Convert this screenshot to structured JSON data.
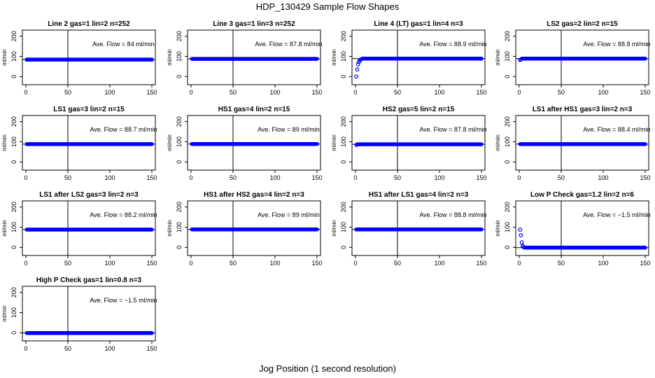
{
  "figure": {
    "title": "HDP_130429  Sample Flow Shapes",
    "xlabel": "Jog Position (1 second resolution)",
    "ylabel": "ml/min"
  },
  "colors": {
    "points": "#0000ff",
    "axis": "#000000"
  },
  "chart_data": [
    {
      "type": "scatter",
      "title": "Line 2 gas=1 lin=2 n=252",
      "annotation": "Ave. Flow = 84  ml/min",
      "xlim": [
        0,
        150
      ],
      "ylim": [
        -30,
        220
      ],
      "xticks": [
        0,
        50,
        100,
        150
      ],
      "yticks": [
        0,
        100,
        200
      ],
      "vline": 50,
      "hline": 84,
      "points": [
        {
          "x": 1,
          "y": 84
        },
        {
          "x": 150,
          "y": 84
        }
      ],
      "flat": {
        "x_start": 2,
        "x_end": 150,
        "y": 84
      }
    },
    {
      "type": "scatter",
      "title": "Line 3 gas=1 lin=3 n=252",
      "annotation": "Ave. Flow = 87.8  ml/min",
      "xlim": [
        0,
        150
      ],
      "ylim": [
        -30,
        220
      ],
      "xticks": [
        0,
        50,
        100,
        150
      ],
      "yticks": [
        0,
        100,
        200
      ],
      "vline": 50,
      "hline": 87.8,
      "points": [],
      "flat": {
        "x_start": 1,
        "x_end": 150,
        "y": 87.8
      }
    },
    {
      "type": "scatter",
      "title": "Line 4 (LT) gas=1 lin=4 n=3",
      "annotation": "Ave. Flow = 88.9  ml/min",
      "xlim": [
        0,
        150
      ],
      "ylim": [
        -30,
        220
      ],
      "xticks": [
        0,
        50,
        100,
        150
      ],
      "yticks": [
        0,
        100,
        200
      ],
      "vline": 50,
      "hline": 88.9,
      "points": [
        {
          "x": 1,
          "y": 0
        },
        {
          "x": 2,
          "y": 35
        },
        {
          "x": 3,
          "y": 60
        },
        {
          "x": 4,
          "y": 72
        },
        {
          "x": 5,
          "y": 80
        },
        {
          "x": 6,
          "y": 84
        },
        {
          "x": 7,
          "y": 86
        }
      ],
      "flat": {
        "x_start": 8,
        "x_end": 150,
        "y": 88.9
      }
    },
    {
      "type": "scatter",
      "title": "LS2 gas=2 lin=2 n=15",
      "annotation": "Ave. Flow = 88.8  ml/min",
      "xlim": [
        0,
        150
      ],
      "ylim": [
        -30,
        220
      ],
      "xticks": [
        0,
        50,
        100,
        150
      ],
      "yticks": [
        0,
        100,
        200
      ],
      "vline": 50,
      "hline": 88.8,
      "points": [
        {
          "x": 1,
          "y": 82
        },
        {
          "x": 2,
          "y": 85
        }
      ],
      "flat": {
        "x_start": 3,
        "x_end": 150,
        "y": 88.8
      }
    },
    {
      "type": "scatter",
      "title": "LS1 gas=3 lin=2 n=15",
      "annotation": "Ave. Flow = 88.7  ml/min",
      "xlim": [
        0,
        150
      ],
      "ylim": [
        -30,
        220
      ],
      "xticks": [
        0,
        50,
        100,
        150
      ],
      "yticks": [
        0,
        100,
        200
      ],
      "vline": 50,
      "hline": 88.7,
      "points": [],
      "flat": {
        "x_start": 1,
        "x_end": 150,
        "y": 88.7
      }
    },
    {
      "type": "scatter",
      "title": "HS1 gas=4 lin=2 n=15",
      "annotation": "Ave. Flow = 89  ml/min",
      "xlim": [
        0,
        150
      ],
      "ylim": [
        -30,
        220
      ],
      "xticks": [
        0,
        50,
        100,
        150
      ],
      "yticks": [
        0,
        100,
        200
      ],
      "vline": 50,
      "hline": 89,
      "points": [],
      "flat": {
        "x_start": 1,
        "x_end": 150,
        "y": 89
      }
    },
    {
      "type": "scatter",
      "title": "HS2 gas=5 lin=2 n=15",
      "annotation": "Ave. Flow = 87.8  ml/min",
      "xlim": [
        0,
        150
      ],
      "ylim": [
        -30,
        220
      ],
      "xticks": [
        0,
        50,
        100,
        150
      ],
      "yticks": [
        0,
        100,
        200
      ],
      "vline": 50,
      "hline": 87.8,
      "points": [
        {
          "x": 1,
          "y": 84
        }
      ],
      "flat": {
        "x_start": 2,
        "x_end": 150,
        "y": 87.8
      }
    },
    {
      "type": "scatter",
      "title": "LS1 after HS1 gas=3 lin=2 n=3",
      "annotation": "Ave. Flow = 88.4  ml/min",
      "xlim": [
        0,
        150
      ],
      "ylim": [
        -30,
        220
      ],
      "xticks": [
        0,
        50,
        100,
        150
      ],
      "yticks": [
        0,
        100,
        200
      ],
      "vline": 50,
      "hline": 88.4,
      "points": [],
      "flat": {
        "x_start": 1,
        "x_end": 150,
        "y": 88.4
      }
    },
    {
      "type": "scatter",
      "title": "LS1 after LS2 gas=3 lin=2 n=3",
      "annotation": "Ave. Flow = 88.2  ml/min",
      "xlim": [
        0,
        150
      ],
      "ylim": [
        -30,
        220
      ],
      "xticks": [
        0,
        50,
        100,
        150
      ],
      "yticks": [
        0,
        100,
        200
      ],
      "vline": 50,
      "hline": 88.2,
      "points": [],
      "flat": {
        "x_start": 1,
        "x_end": 150,
        "y": 88.2
      }
    },
    {
      "type": "scatter",
      "title": "HS1 after HS2 gas=4 lin=2 n=3",
      "annotation": "Ave. Flow = 89  ml/min",
      "xlim": [
        0,
        150
      ],
      "ylim": [
        -30,
        220
      ],
      "xticks": [
        0,
        50,
        100,
        150
      ],
      "yticks": [
        0,
        100,
        200
      ],
      "vline": 50,
      "hline": 89,
      "points": [],
      "flat": {
        "x_start": 1,
        "x_end": 150,
        "y": 89
      }
    },
    {
      "type": "scatter",
      "title": "HS1 after LS1 gas=4 lin=2 n=3",
      "annotation": "Ave. Flow = 88.8  ml/min",
      "xlim": [
        0,
        150
      ],
      "ylim": [
        -30,
        220
      ],
      "xticks": [
        0,
        50,
        100,
        150
      ],
      "yticks": [
        0,
        100,
        200
      ],
      "vline": 50,
      "hline": 88.8,
      "points": [],
      "flat": {
        "x_start": 1,
        "x_end": 150,
        "y": 88.8
      }
    },
    {
      "type": "scatter",
      "title": "Low P Check gas=1.2 lin=2 n=6",
      "annotation": "Ave. Flow = −1.5  ml/min",
      "xlim": [
        0,
        150
      ],
      "ylim": [
        -30,
        220
      ],
      "xticks": [
        0,
        50,
        100,
        150
      ],
      "yticks": [
        0,
        100,
        200
      ],
      "vline": 50,
      "hline": -1.5,
      "points": [
        {
          "x": 1,
          "y": 88
        },
        {
          "x": 2,
          "y": 60
        },
        {
          "x": 3,
          "y": 25
        },
        {
          "x": 4,
          "y": 8
        },
        {
          "x": 5,
          "y": 2
        }
      ],
      "flat": {
        "x_start": 6,
        "x_end": 150,
        "y": -1.5
      }
    },
    {
      "type": "scatter",
      "title": "High P Check gas=1 lin=0.8 n=3",
      "annotation": "Ave. Flow = −1.5  ml/min",
      "xlim": [
        0,
        150
      ],
      "ylim": [
        -30,
        220
      ],
      "xticks": [
        0,
        50,
        100,
        150
      ],
      "yticks": [
        0,
        100,
        200
      ],
      "vline": 50,
      "hline": -1.5,
      "points": [],
      "flat": {
        "x_start": 1,
        "x_end": 150,
        "y": -1.5
      }
    }
  ]
}
